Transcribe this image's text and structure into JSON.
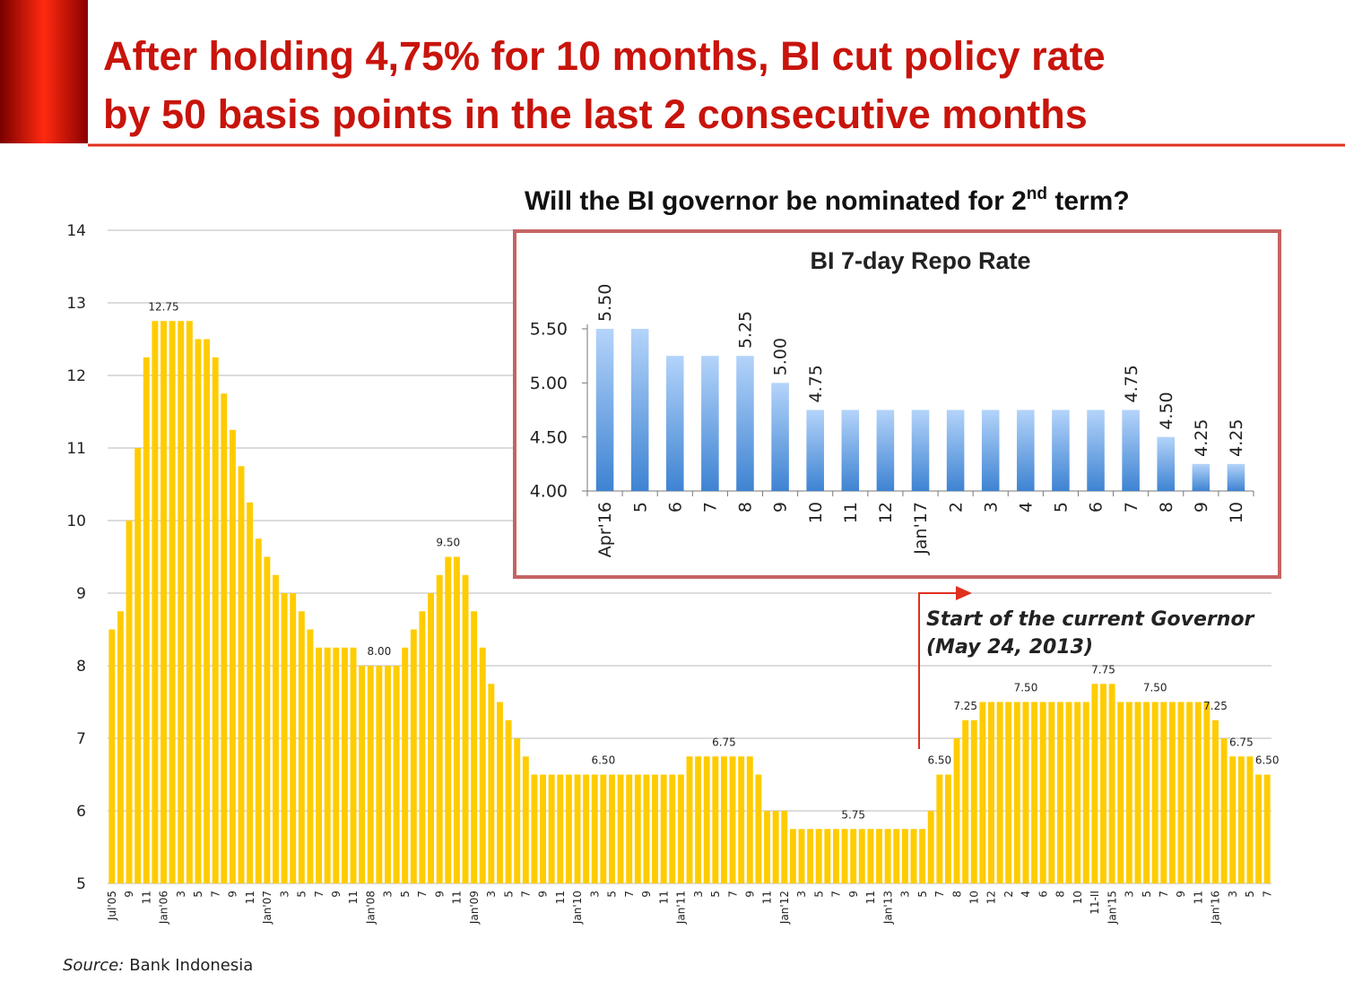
{
  "header": {
    "title": [
      "After holding 4,75% for 10 months, BI cut policy rate",
      "by 50 basis points in the last 2 consecutive months"
    ]
  },
  "question": {
    "text": "Will the BI governor be nominated for 2",
    "superscript": "nd",
    "suffix": " term?"
  },
  "annotation": [
    "Start of the current Governor",
    "(May 24, 2013)"
  ],
  "source": {
    "label": "Source:",
    "text": "Bank Indonesia"
  },
  "chart_data": [
    {
      "type": "bar",
      "color": "#ffcc00",
      "grid": true,
      "ylim": [
        5,
        14
      ],
      "yticks": [
        5,
        6,
        7,
        8,
        9,
        10,
        11,
        12,
        13,
        14
      ],
      "categories": [
        "Jul'05",
        null,
        "9",
        null,
        "11",
        null,
        "Jan'06",
        null,
        "3",
        null,
        "5",
        null,
        "7",
        null,
        "9",
        null,
        "11",
        null,
        "Jan'07",
        null,
        "3",
        null,
        "5",
        null,
        "7",
        null,
        "9",
        null,
        "11",
        null,
        "Jan'08",
        null,
        "3",
        null,
        "5",
        null,
        "7",
        null,
        "9",
        null,
        "11",
        null,
        "Jan'09",
        null,
        "3",
        null,
        "5",
        null,
        "7",
        null,
        "9",
        null,
        "11",
        null,
        "Jan'10",
        null,
        "3",
        null,
        "5",
        null,
        "7",
        null,
        "9",
        null,
        "11",
        null,
        "Jan'11",
        null,
        "3",
        null,
        "5",
        null,
        "7",
        null,
        "9",
        null,
        "11",
        null,
        "Jan'12",
        null,
        "3",
        null,
        "5",
        null,
        "7",
        null,
        "9",
        null,
        "11",
        null,
        "Jan'13",
        null,
        "3",
        null,
        "5",
        null,
        "7",
        null,
        "8",
        null,
        "10",
        null,
        "12",
        null,
        "2",
        null,
        "4",
        null,
        "6",
        null,
        "8",
        null,
        "10",
        null,
        "11-II",
        null,
        "Jan'15",
        null,
        "3",
        null,
        "5",
        null,
        "7",
        null,
        "9",
        null,
        "11",
        null,
        "Jan'16",
        null,
        "3",
        null,
        "5",
        null,
        "7"
      ],
      "values": [
        8.5,
        8.75,
        10,
        11,
        12.25,
        12.75,
        12.75,
        12.75,
        12.75,
        12.75,
        12.5,
        12.5,
        12.25,
        11.75,
        11.25,
        10.75,
        10.25,
        9.75,
        9.5,
        9.25,
        9,
        9,
        8.75,
        8.5,
        8.25,
        8.25,
        8.25,
        8.25,
        8.25,
        8,
        8,
        8,
        8,
        8,
        8.25,
        8.5,
        8.75,
        9,
        9.25,
        9.5,
        9.5,
        9.25,
        8.75,
        8.25,
        7.75,
        7.5,
        7.25,
        7,
        6.75,
        6.5,
        6.5,
        6.5,
        6.5,
        6.5,
        6.5,
        6.5,
        6.5,
        6.5,
        6.5,
        6.5,
        6.5,
        6.5,
        6.5,
        6.5,
        6.5,
        6.5,
        6.5,
        6.75,
        6.75,
        6.75,
        6.75,
        6.75,
        6.75,
        6.75,
        6.75,
        6.5,
        6,
        6,
        6,
        5.75,
        5.75,
        5.75,
        5.75,
        5.75,
        5.75,
        5.75,
        5.75,
        5.75,
        5.75,
        5.75,
        5.75,
        5.75,
        5.75,
        5.75,
        5.75,
        6,
        6.5,
        6.5,
        7,
        7.25,
        7.25,
        7.5,
        7.5,
        7.5,
        7.5,
        7.5,
        7.5,
        7.5,
        7.5,
        7.5,
        7.5,
        7.5,
        7.5,
        7.5,
        7.75,
        7.75,
        7.75,
        7.5,
        7.5,
        7.5,
        7.5,
        7.5,
        7.5,
        7.5,
        7.5,
        7.5,
        7.5,
        7.5,
        7.25,
        7,
        6.75,
        6.75,
        6.75,
        6.5,
        6.5
      ],
      "value_labels": [
        null,
        null,
        null,
        null,
        null,
        null,
        "12.75",
        null,
        null,
        null,
        null,
        null,
        null,
        null,
        null,
        null,
        null,
        null,
        null,
        null,
        null,
        null,
        null,
        null,
        null,
        null,
        null,
        null,
        null,
        null,
        null,
        "8.00",
        null,
        null,
        null,
        null,
        null,
        null,
        null,
        "9.50",
        null,
        null,
        null,
        null,
        null,
        null,
        null,
        null,
        null,
        null,
        null,
        null,
        null,
        null,
        null,
        null,
        null,
        "6.50",
        null,
        null,
        null,
        null,
        null,
        null,
        null,
        null,
        null,
        null,
        null,
        null,
        null,
        "6.75",
        null,
        null,
        null,
        null,
        null,
        null,
        null,
        null,
        null,
        null,
        null,
        null,
        null,
        null,
        "5.75",
        null,
        null,
        null,
        null,
        null,
        null,
        null,
        null,
        null,
        "6.50",
        null,
        null,
        "7.25",
        null,
        null,
        null,
        null,
        null,
        null,
        "7.50",
        null,
        null,
        null,
        null,
        null,
        null,
        null,
        null,
        "7.75",
        null,
        null,
        null,
        null,
        null,
        "7.50",
        null,
        null,
        null,
        null,
        null,
        null,
        "7.25",
        null,
        null,
        "6.75",
        null,
        null,
        "6.50"
      ]
    },
    {
      "type": "bar",
      "title": "BI 7-day Repo Rate",
      "color": "#5b9bd5",
      "ylim": [
        4,
        5.5
      ],
      "yticks": [
        {
          "value": 4,
          "label": "4.00"
        },
        {
          "value": 4.5,
          "label": "4.50"
        },
        {
          "value": 5,
          "label": "5.00"
        },
        {
          "value": 5.5,
          "label": "5.50"
        }
      ],
      "categories": [
        "Apr'16",
        "5",
        "6",
        "7",
        "8",
        "9",
        "10",
        "11",
        "12",
        "Jan'17",
        "2",
        "3",
        "4",
        "5",
        "6",
        "7",
        "8",
        "9",
        "10"
      ],
      "values": [
        5.5,
        5.5,
        5.25,
        5.25,
        5.25,
        5,
        4.75,
        4.75,
        4.75,
        4.75,
        4.75,
        4.75,
        4.75,
        4.75,
        4.75,
        4.75,
        4.5,
        4.25,
        4.25
      ],
      "value_labels": [
        "5.50",
        null,
        null,
        null,
        "5.25",
        "5.00",
        "4.75",
        null,
        null,
        null,
        null,
        null,
        null,
        null,
        null,
        "4.75",
        "4.50",
        "4.25",
        "4.25"
      ]
    }
  ]
}
